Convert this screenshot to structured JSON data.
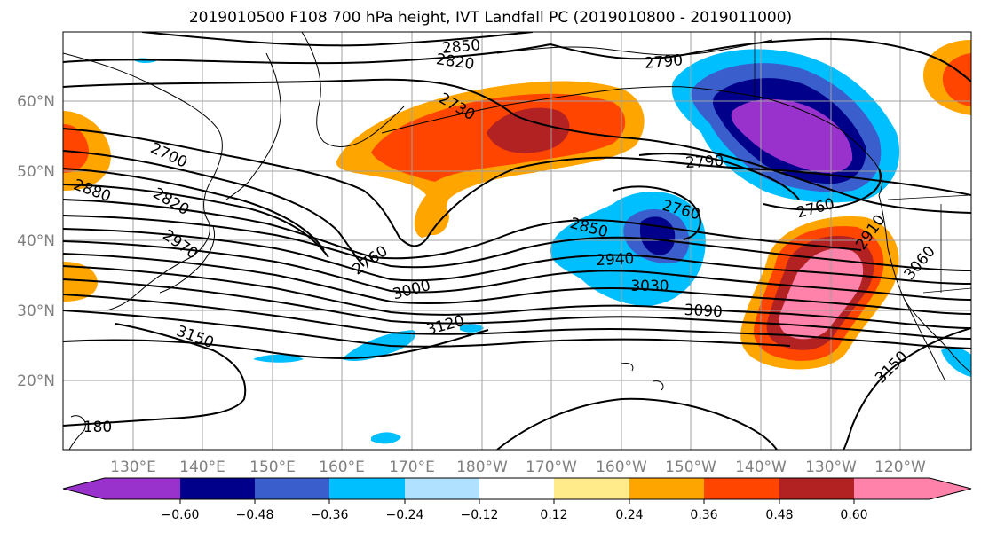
{
  "title": "2019010500 F108 700 hPa height, IVT Landfall PC (2019010800 - 2019011000)",
  "longitude_labels": [
    "130°E",
    "140°E",
    "150°E",
    "160°E",
    "170°E",
    "180°W",
    "170°W",
    "160°W",
    "150°W",
    "140°W",
    "130°W",
    "120°W"
  ],
  "latitude_labels": [
    "60°N",
    "50°N",
    "40°N",
    "30°N",
    "20°N"
  ],
  "contour_labels": [
    "2850",
    "2820",
    "2790",
    "2730",
    "2700",
    "2880",
    "2820",
    "2790",
    "2760",
    "2760",
    "2970",
    "2760",
    "2850",
    "2940",
    "3030",
    "3000",
    "3090",
    "3120",
    "3150",
    "2910",
    "3060",
    "3150",
    "180"
  ],
  "colorbar": {
    "ticks": [
      "−0.60",
      "−0.48",
      "−0.36",
      "−0.24",
      "−0.12",
      "0.12",
      "0.24",
      "0.36",
      "0.48",
      "0.60"
    ],
    "colors": [
      "#9932cc",
      "#00008b",
      "#3a5fcd",
      "#00bfff",
      "#b0e2ff",
      "#ffffff",
      "#ffeb8a",
      "#ffa500",
      "#ff4500",
      "#b22222",
      "#ff82ab"
    ]
  }
}
